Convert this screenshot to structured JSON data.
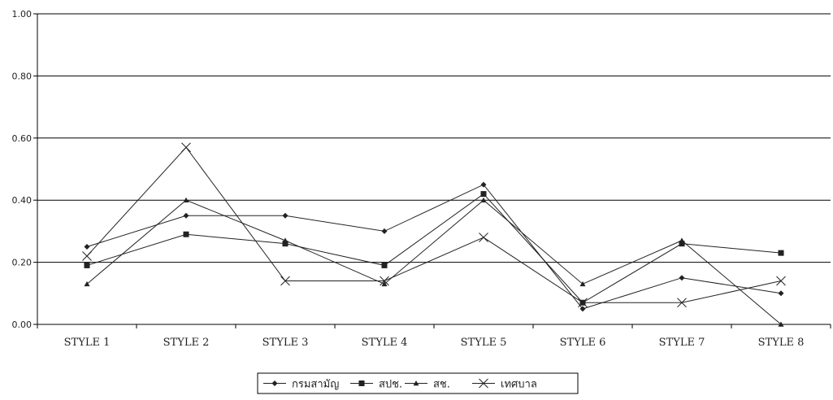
{
  "chart_data": {
    "type": "line",
    "title": "",
    "xlabel": "",
    "ylabel": "",
    "categories": [
      "STYLE 1",
      "STYLE 2",
      "STYLE 3",
      "STYLE 4",
      "STYLE 5",
      "STYLE 6",
      "STYLE 7",
      "STYLE 8"
    ],
    "ylim": [
      0,
      1
    ],
    "yticks": [
      "0.00",
      "0.20",
      "0.40",
      "0.60",
      "0.80",
      "1.00"
    ],
    "grid": true,
    "legend_position": "bottom",
    "series": [
      {
        "name": "กรมสามัญ",
        "marker": "diamond",
        "color": "#222222",
        "values": [
          0.25,
          0.35,
          0.35,
          0.3,
          0.45,
          0.05,
          0.15,
          0.1
        ]
      },
      {
        "name": "สปช.",
        "marker": "square",
        "color": "#222222",
        "values": [
          0.19,
          0.29,
          0.26,
          0.19,
          0.42,
          0.07,
          0.26,
          0.23
        ]
      },
      {
        "name": "สช.",
        "marker": "triangle",
        "color": "#222222",
        "values": [
          0.13,
          0.4,
          0.27,
          0.13,
          0.4,
          0.13,
          0.27,
          0.0
        ]
      },
      {
        "name": "เทศบาล",
        "marker": "x",
        "color": "#222222",
        "values": [
          0.22,
          0.57,
          0.14,
          0.14,
          0.28,
          0.07,
          0.07,
          0.14
        ]
      }
    ]
  }
}
